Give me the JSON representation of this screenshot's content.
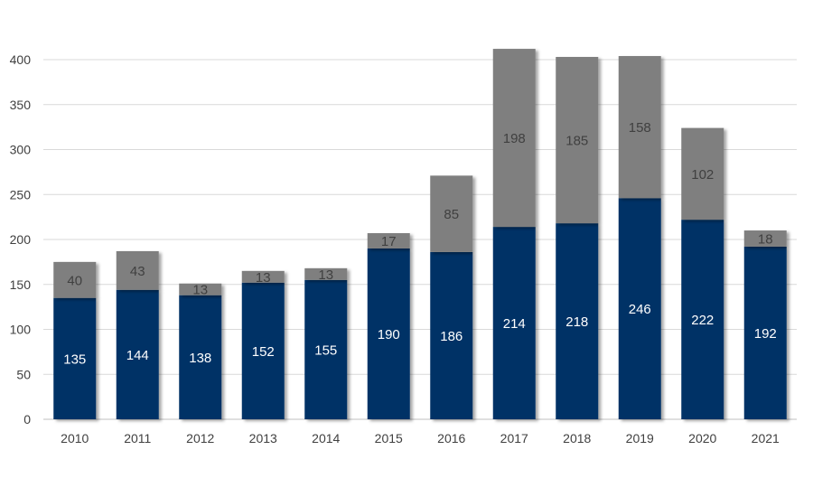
{
  "chart_data": {
    "type": "bar",
    "stacked": true,
    "categories": [
      "2010",
      "2011",
      "2012",
      "2013",
      "2014",
      "2015",
      "2016",
      "2017",
      "2018",
      "2019",
      "2020",
      "2021"
    ],
    "series": [
      {
        "values": [
          135,
          144,
          138,
          152,
          155,
          190,
          186,
          214,
          218,
          246,
          222,
          192
        ],
        "color": "#003366",
        "label_color": "#ffffff"
      },
      {
        "values": [
          40,
          43,
          13,
          13,
          13,
          17,
          85,
          198,
          185,
          158,
          102,
          18
        ],
        "color": "#7f7f7f",
        "label_color": "#404040"
      }
    ],
    "title": "",
    "xlabel": "",
    "ylabel": "",
    "ylim": [
      0,
      400
    ],
    "yticks": [
      0,
      50,
      100,
      150,
      200,
      250,
      300,
      350,
      400
    ],
    "grid": true,
    "legend": "none"
  }
}
